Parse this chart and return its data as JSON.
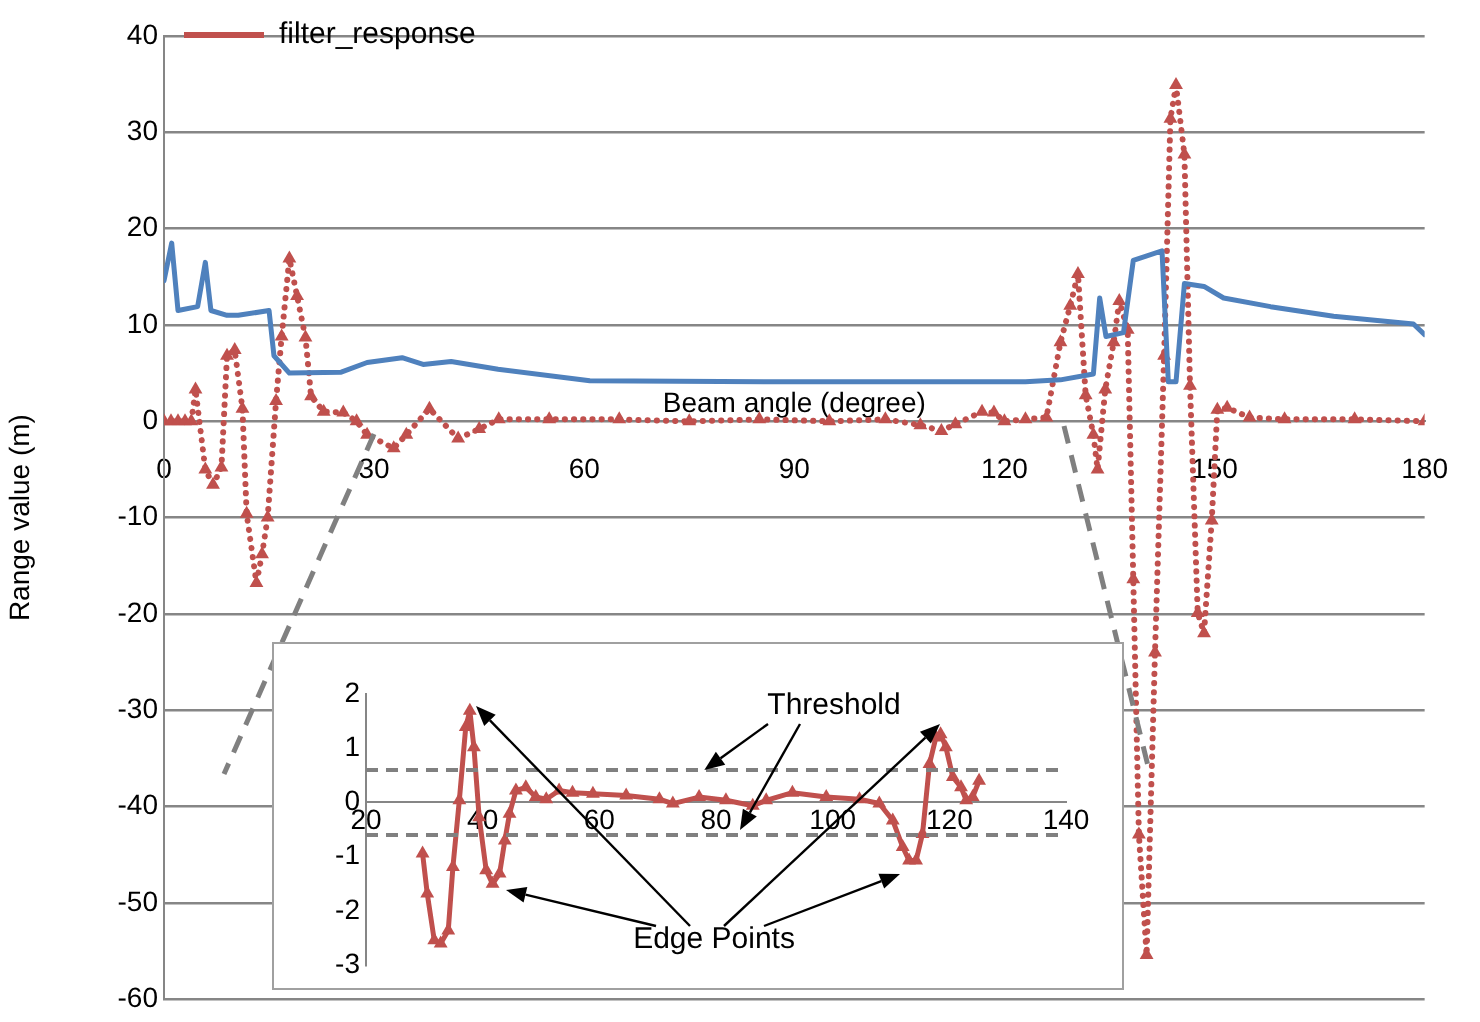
{
  "chart_data": [
    {
      "type": "line",
      "xlabel": "Beam angle (degree)",
      "ylabel": "Range value (m)",
      "xlim": [
        0,
        180
      ],
      "xticks": [
        0,
        30,
        60,
        90,
        120,
        150,
        180
      ],
      "ylim": [
        -60,
        40
      ],
      "yticks": [
        -60,
        -50,
        -40,
        -30,
        -20,
        -10,
        0,
        10,
        20,
        30,
        40
      ],
      "grid": "y",
      "legend": "top left",
      "series": [
        {
          "color": "#4f81bd",
          "line_style": "solid",
          "marker": "none",
          "x": [
            0,
            1.1,
            2,
            4.8,
            5.9,
            6.7,
            9,
            10.6,
            15,
            15.7,
            17.9,
            25.3,
            29,
            34,
            37,
            41,
            47.7,
            60.8,
            90,
            123,
            128,
            132.7,
            133.6,
            134.5,
            137,
            138.4,
            142.5,
            143.4,
            144.5,
            145.7,
            148.5,
            151.3,
            158,
            167,
            178.4,
            180
          ],
          "values": [
            14.6,
            18.5,
            11.5,
            11.9,
            16.5,
            11.5,
            11,
            11,
            11.5,
            6.8,
            5,
            5.1,
            6.1,
            6.6,
            5.9,
            6.2,
            5.4,
            4.2,
            4.1,
            4.1,
            4.3,
            4.9,
            12.8,
            8.8,
            9.2,
            16.7,
            17.7,
            4.1,
            4.1,
            14.3,
            14,
            12.8,
            11.9,
            10.9,
            10.1,
            9
          ]
        },
        {
          "name": "filter_response",
          "color": "#c0504d",
          "line_style": "dotted",
          "marker": "triangle",
          "x": [
            0,
            1,
            2,
            3,
            3.9,
            4.5,
            5.9,
            7,
            8.2,
            9,
            10.1,
            11.2,
            11.8,
            13.2,
            14,
            14.8,
            16,
            16.8,
            17.9,
            19,
            20.2,
            21,
            22.8,
            25.6,
            27.5,
            29,
            32.8,
            34.6,
            37.9,
            42,
            45,
            47.8,
            55,
            65,
            75,
            85,
            95,
            103,
            108,
            111,
            113,
            116.8,
            118.5,
            120,
            123,
            126,
            128,
            129.4,
            130.5,
            131.6,
            132.7,
            133.3,
            134.4,
            135.6,
            136.4,
            137.6,
            138.4,
            139.2,
            140.3,
            141.5,
            142.8,
            143.7,
            144.5,
            145.7,
            146.5,
            147.6,
            148.5,
            149.6,
            150.4,
            151.8,
            155,
            160,
            170,
            180
          ],
          "values": [
            0,
            0,
            0,
            0,
            0,
            3.3,
            -5,
            -6.6,
            -4.8,
            6.8,
            7.4,
            1.3,
            -9.6,
            -16.8,
            -13.8,
            -10,
            2.1,
            8.8,
            16.9,
            13,
            8.7,
            2.6,
            1,
            0.9,
            0,
            -1.4,
            -2.8,
            -1.4,
            1.3,
            -1.8,
            -0.8,
            0.2,
            0.2,
            0.2,
            0,
            0.2,
            0,
            0.2,
            -0.4,
            -1,
            -0.3,
            1,
            0.9,
            0,
            0.2,
            0.4,
            8.2,
            12,
            15.3,
            2.7,
            -1.4,
            -5,
            3.3,
            8.2,
            12.5,
            9.5,
            -16.4,
            -42.9,
            -55.4,
            -24,
            6.8,
            31.4,
            34.9,
            27.7,
            3.7,
            -19.9,
            -22,
            -10.3,
            1.2,
            1.4,
            0.4,
            0.2,
            0.2,
            0
          ]
        }
      ]
    },
    {
      "type": "line",
      "xlim": [
        20,
        140
      ],
      "xticks": [
        20,
        40,
        60,
        80,
        100,
        120,
        140
      ],
      "ylim": [
        -3,
        2
      ],
      "yticks": [
        -3,
        -2,
        -1,
        0,
        1,
        2
      ],
      "grid": false,
      "legend": false,
      "annotations": [
        {
          "text": "Threshold",
          "x": 78,
          "y": 0.6
        },
        {
          "text": "Edge Points"
        }
      ],
      "ref_lines": [
        {
          "axis": "y",
          "value": 0.6,
          "color": "#808080",
          "line_style": "dashed"
        },
        {
          "axis": "y",
          "value": -0.6,
          "color": "#808080",
          "line_style": "dashed"
        }
      ],
      "series": [
        {
          "color": "#c0504d",
          "line_style": "solid",
          "marker": "triangle",
          "x": [
            29.7,
            30.5,
            31.7,
            32.8,
            34.1,
            34.9,
            36,
            37.1,
            37.8,
            38.5,
            39.4,
            40.6,
            41.7,
            42.9,
            43.8,
            44.6,
            45.7,
            47.4,
            49.1,
            50.9,
            53.1,
            55.4,
            58.9,
            64.6,
            70.3,
            72.6,
            77.1,
            81.7,
            86.3,
            88.6,
            93.1,
            98.9,
            104.6,
            108,
            110.3,
            112,
            113.1,
            114.3,
            115.4,
            116.6,
            117.7,
            118.5,
            119.4,
            120.6,
            122,
            122.9,
            124,
            125.1
          ],
          "values": [
            -0.94,
            -1.68,
            -2.54,
            -2.6,
            -2.36,
            -1.19,
            0.04,
            1.39,
            1.69,
            1.02,
            -0.27,
            -1.25,
            -1.5,
            -1.31,
            -0.7,
            -0.21,
            0.22,
            0.28,
            0.1,
            0.06,
            0.22,
            0.18,
            0.16,
            0.13,
            0.06,
            -0.02,
            0.1,
            0.04,
            -0.06,
            0.04,
            0.18,
            0.1,
            0.06,
            -0.02,
            -0.33,
            -0.82,
            -1.07,
            -1.07,
            -0.58,
            0.71,
            1.2,
            1.26,
            1.02,
            0.47,
            0.28,
            0.04,
            0.1,
            0.4
          ]
        }
      ]
    }
  ]
}
